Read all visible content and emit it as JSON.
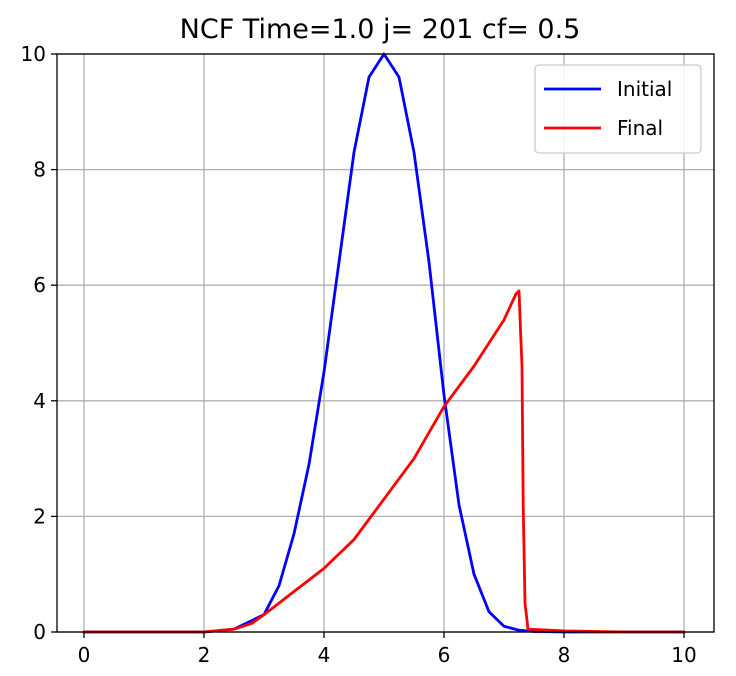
{
  "chart_data": {
    "type": "line",
    "title": "NCF Time=1.0  j= 201  cf= 0.5",
    "xlabel": "",
    "ylabel": "",
    "xlim": [
      -0.45,
      10.5
    ],
    "ylim": [
      0,
      10
    ],
    "xticks": [
      0,
      2,
      4,
      6,
      8,
      10
    ],
    "yticks": [
      0,
      2,
      4,
      6,
      8,
      10
    ],
    "grid": true,
    "legend_position": "top-right",
    "series": [
      {
        "name": "Initial",
        "color": "#0000ff",
        "x": [
          0,
          1,
          2,
          2.5,
          3.0,
          3.25,
          3.5,
          3.75,
          4.0,
          4.25,
          4.5,
          4.75,
          5.0,
          5.25,
          5.5,
          5.75,
          6.0,
          6.25,
          6.5,
          6.75,
          7.0,
          7.25,
          7.5,
          8,
          9,
          10
        ],
        "y": [
          0,
          0,
          0.0,
          0.05,
          0.3,
          0.8,
          1.7,
          2.9,
          4.5,
          6.4,
          8.3,
          9.6,
          10.0,
          9.6,
          8.3,
          6.4,
          4.1,
          2.2,
          1.0,
          0.35,
          0.1,
          0.03,
          0.01,
          0,
          0,
          0
        ]
      },
      {
        "name": "Final",
        "color": "#ff0000",
        "x": [
          0,
          1,
          2,
          2.5,
          2.8,
          3.0,
          3.25,
          3.5,
          3.75,
          4.0,
          4.5,
          5.0,
          5.5,
          6.0,
          6.5,
          7.0,
          7.2,
          7.25,
          7.28,
          7.3,
          7.32,
          7.35,
          7.4,
          8,
          9,
          10
        ],
        "y": [
          0,
          0,
          0.0,
          0.05,
          0.15,
          0.3,
          0.5,
          0.7,
          0.9,
          1.1,
          1.6,
          2.3,
          3.0,
          3.9,
          4.6,
          5.4,
          5.85,
          5.9,
          5.1,
          4.6,
          2.2,
          0.5,
          0.05,
          0.02,
          0,
          0
        ]
      }
    ]
  }
}
